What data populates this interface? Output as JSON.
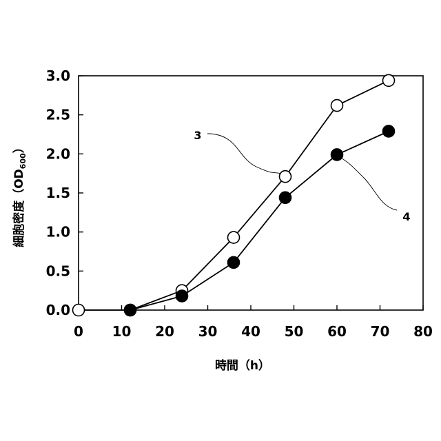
{
  "chart_data": {
    "type": "line",
    "xlabel": "時間（h）",
    "ylabel": "細胞密度（OD",
    "ylabel_sub": "600",
    "ylabel_close": "）",
    "xlim": [
      0,
      80
    ],
    "ylim": [
      0,
      3.0
    ],
    "x_ticks": [
      0,
      10,
      20,
      30,
      40,
      50,
      60,
      70,
      80
    ],
    "y_ticks": [
      0,
      0.5,
      1.0,
      1.5,
      2.0,
      2.5,
      3.0
    ],
    "x_tick_labels": [
      "0",
      "10",
      "20",
      "30",
      "40",
      "50",
      "60",
      "70",
      "80"
    ],
    "y_tick_labels": [
      "0.0",
      "0.5",
      "1.0",
      "1.5",
      "2.0",
      "2.5",
      "3.0"
    ],
    "grid": false,
    "legend": "none",
    "series": [
      {
        "name": "3",
        "marker": "open-circle",
        "x": [
          0,
          12,
          24,
          36,
          48,
          60,
          72
        ],
        "y": [
          0.0,
          0.0,
          0.25,
          0.93,
          1.71,
          2.62,
          2.94
        ]
      },
      {
        "name": "4",
        "marker": "filled-circle",
        "x": [
          12,
          24,
          36,
          48,
          60,
          72
        ],
        "y": [
          0.0,
          0.18,
          0.61,
          1.44,
          1.99,
          2.29
        ]
      }
    ],
    "annotations": [
      {
        "text": "3",
        "points_to": {
          "series": 0,
          "x": 48,
          "y": 1.71
        }
      },
      {
        "text": "4",
        "points_to": {
          "series": 1,
          "x": 60,
          "y": 1.99
        }
      }
    ]
  },
  "colors": {
    "ink": "#000000",
    "paper": "#ffffff"
  }
}
